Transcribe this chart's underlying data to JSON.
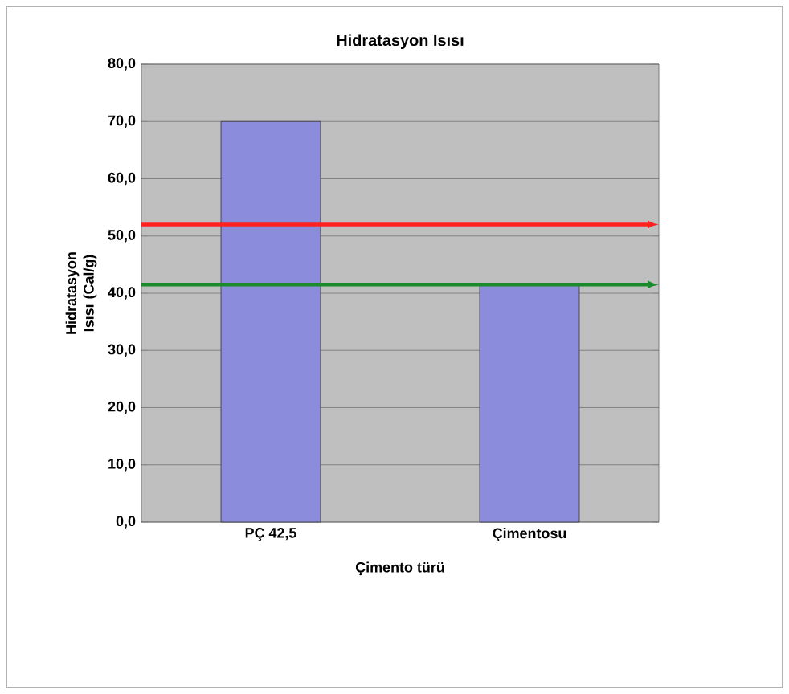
{
  "chart_data": {
    "type": "bar",
    "title": "Hidratasyon Isısı",
    "xlabel": "Çimento türü",
    "ylabel": "Hidratasyon Isısı (Cal/g)",
    "categories": [
      "PÇ 42,5",
      "Çimentosu"
    ],
    "values": [
      70,
      41.5
    ],
    "color": "#8c8cdc",
    "ylim": [
      0,
      80
    ],
    "yticks": [
      {
        "value": 0,
        "label": "0,0"
      },
      {
        "value": 10,
        "label": "10,0"
      },
      {
        "value": 20,
        "label": "20,0"
      },
      {
        "value": 30,
        "label": "30,0"
      },
      {
        "value": 40,
        "label": "40,0"
      },
      {
        "value": 50,
        "label": "50,0"
      },
      {
        "value": 60,
        "label": "60,0"
      },
      {
        "value": 70,
        "label": "70,0"
      },
      {
        "value": 80,
        "label": "80,0"
      }
    ],
    "grid": "y",
    "ref_lines": [
      {
        "axis": "y",
        "value": 52,
        "color": "#ff2020"
      },
      {
        "axis": "y",
        "value": 41.5,
        "color": "#1a8a2a"
      }
    ]
  }
}
